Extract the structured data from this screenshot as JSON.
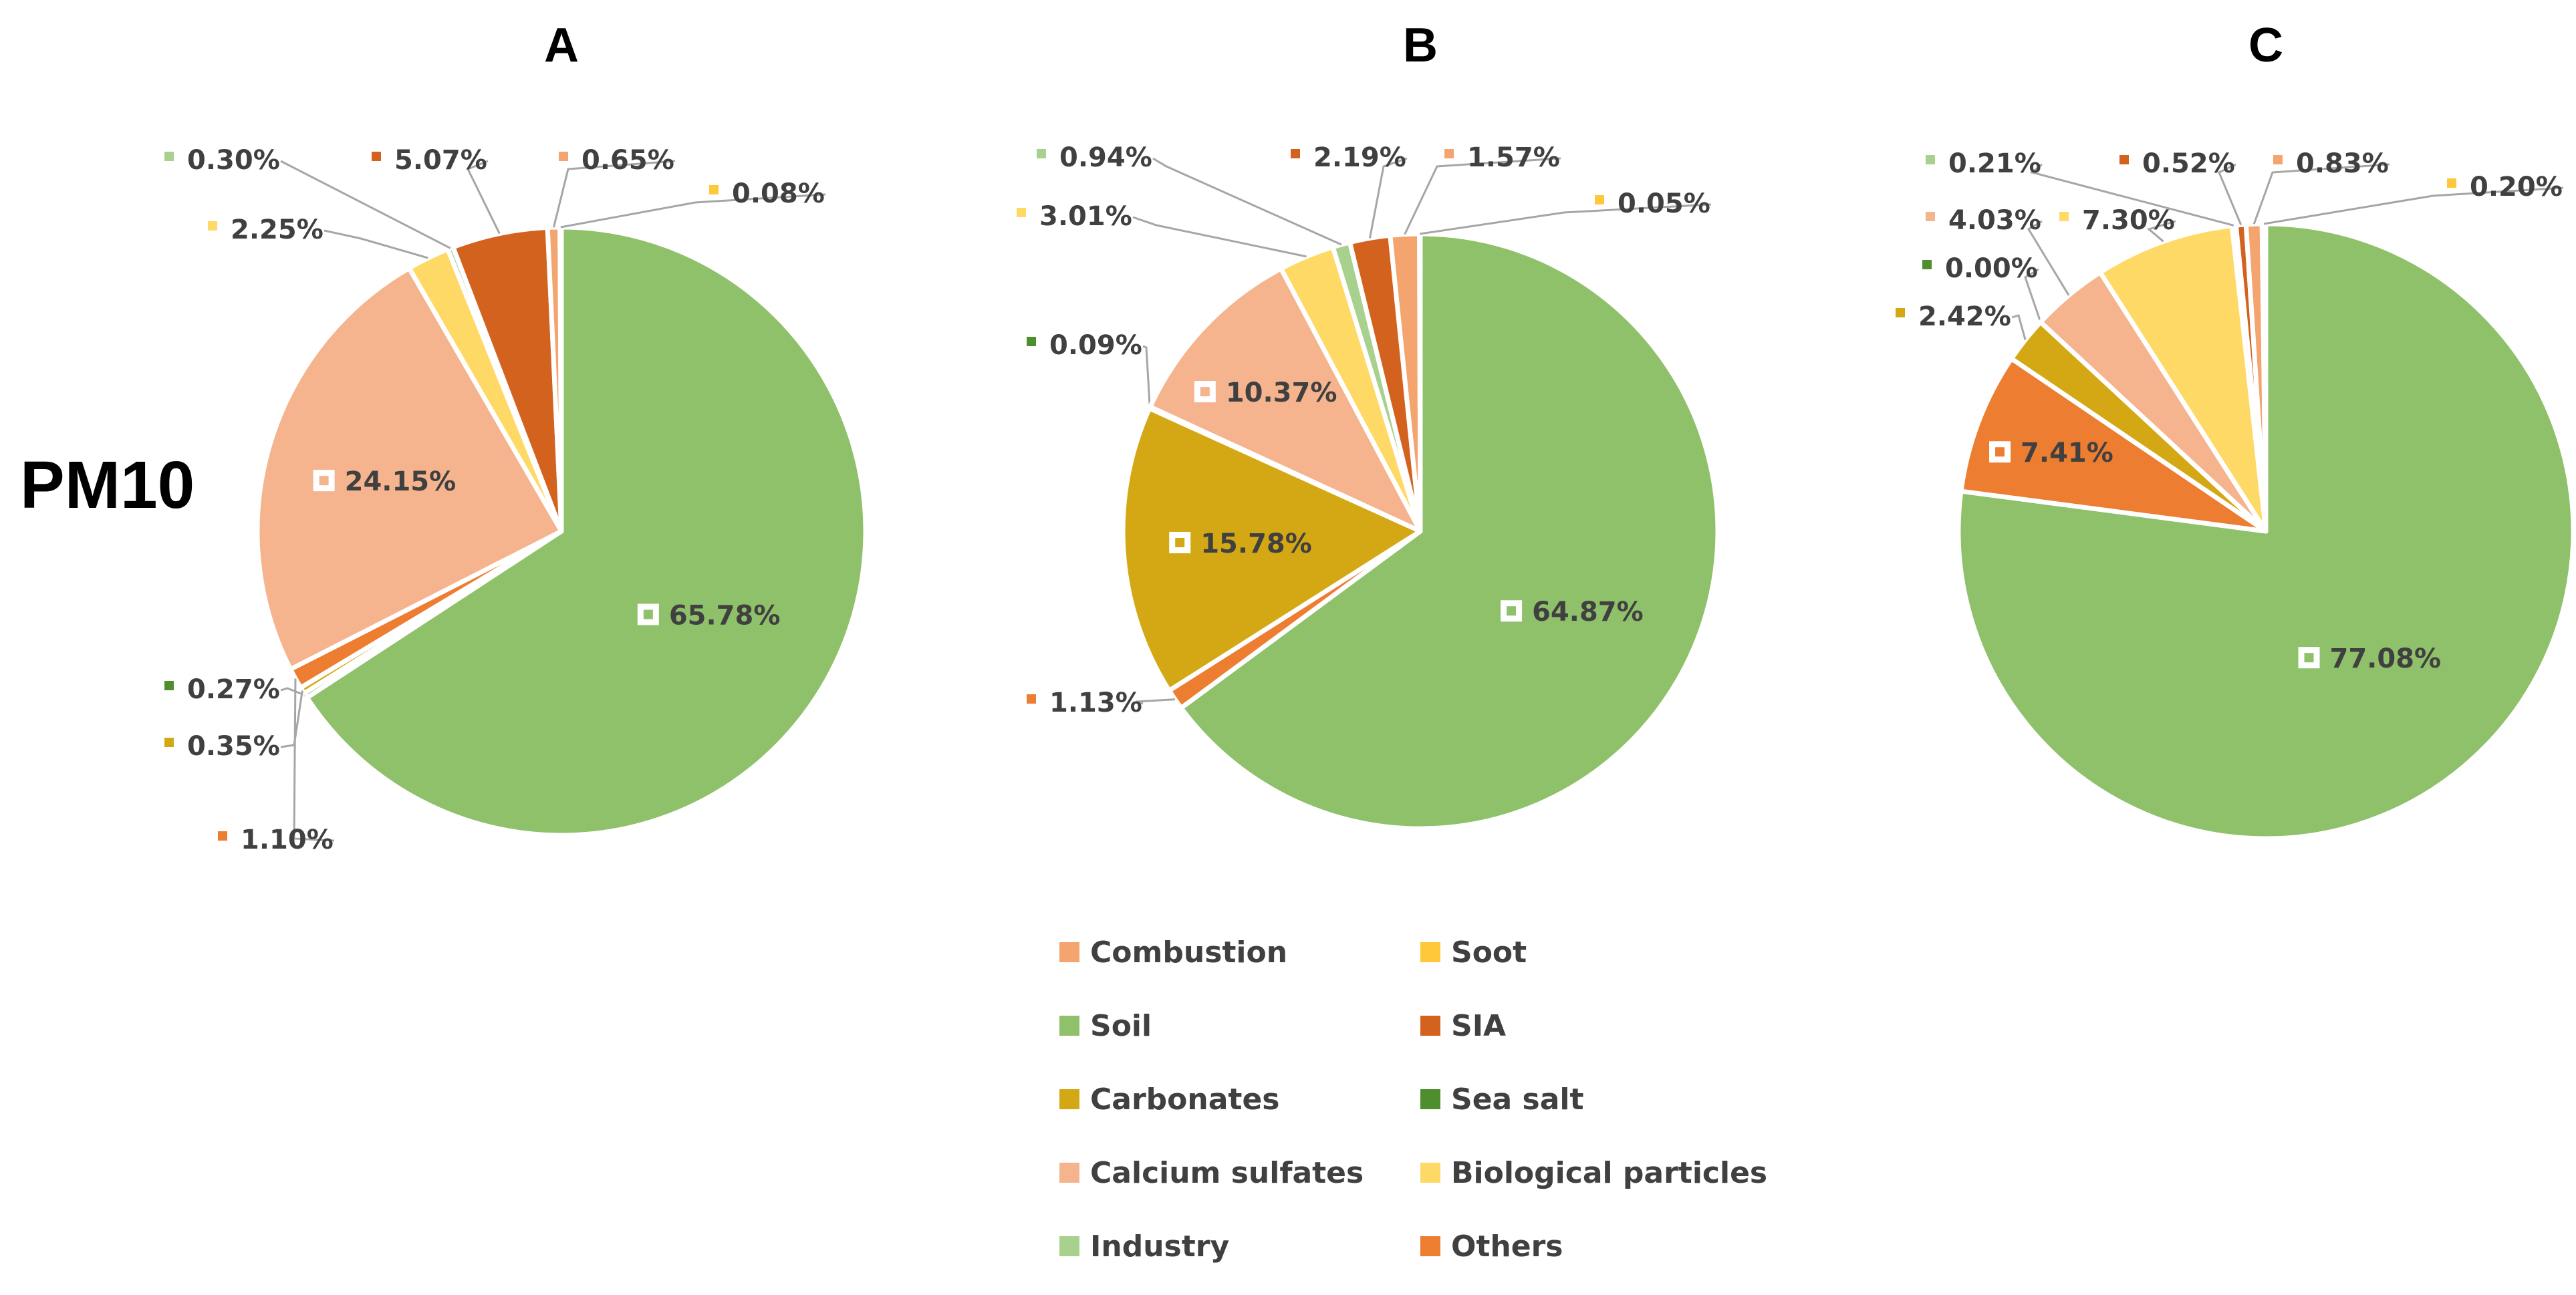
{
  "row_label": "PM10",
  "legend": [
    {
      "name": "Combustion",
      "color": "#F4A46E"
    },
    {
      "name": "Soot",
      "color": "#FFC83A"
    },
    {
      "name": "Soil",
      "color": "#8FC06A"
    },
    {
      "name": "SIA",
      "color": "#D3621F"
    },
    {
      "name": "Carbonates",
      "color": "#D4A814"
    },
    {
      "name": "Sea salt",
      "color": "#4E8E2E"
    },
    {
      "name": "Calcium sulfates",
      "color": "#F5B48E"
    },
    {
      "name": "Biological particles",
      "color": "#FFD966"
    },
    {
      "name": "Industry",
      "color": "#A9D18E"
    },
    {
      "name": "Others",
      "color": "#ED7D31"
    }
  ],
  "chart_data": [
    {
      "type": "pie",
      "title": "A",
      "slices": [
        {
          "name": "Soil",
          "value": 65.78,
          "label": "65.78%"
        },
        {
          "name": "Sea salt",
          "value": 0.27,
          "label": "0.27%"
        },
        {
          "name": "Carbonates",
          "value": 0.35,
          "label": "0.35%"
        },
        {
          "name": "Others",
          "value": 1.1,
          "label": "1.10%"
        },
        {
          "name": "Calcium sulfates",
          "value": 24.15,
          "label": "24.15%"
        },
        {
          "name": "Biological particles",
          "value": 2.25,
          "label": "2.25%"
        },
        {
          "name": "Industry",
          "value": 0.3,
          "label": "0.30%"
        },
        {
          "name": "SIA",
          "value": 5.07,
          "label": "5.07%"
        },
        {
          "name": "Combustion",
          "value": 0.65,
          "label": "0.65%"
        },
        {
          "name": "Soot",
          "value": 0.08,
          "label": "0.08%"
        }
      ]
    },
    {
      "type": "pie",
      "title": "B",
      "slices": [
        {
          "name": "Soil",
          "value": 64.87,
          "label": "64.87%"
        },
        {
          "name": "Others",
          "value": 1.13,
          "label": "1.13%"
        },
        {
          "name": "Carbonates",
          "value": 15.78,
          "label": "15.78%"
        },
        {
          "name": "Sea salt",
          "value": 0.09,
          "label": "0.09%"
        },
        {
          "name": "Calcium sulfates",
          "value": 10.37,
          "label": "10.37%"
        },
        {
          "name": "Biological particles",
          "value": 3.01,
          "label": "3.01%"
        },
        {
          "name": "Industry",
          "value": 0.94,
          "label": "0.94%"
        },
        {
          "name": "SIA",
          "value": 2.19,
          "label": "2.19%"
        },
        {
          "name": "Combustion",
          "value": 1.57,
          "label": "1.57%"
        },
        {
          "name": "Soot",
          "value": 0.05,
          "label": "0.05%"
        }
      ]
    },
    {
      "type": "pie",
      "title": "C",
      "slices": [
        {
          "name": "Soil",
          "value": 77.08,
          "label": "77.08%"
        },
        {
          "name": "Others",
          "value": 7.41,
          "label": "7.41%"
        },
        {
          "name": "Carbonates",
          "value": 2.42,
          "label": "2.42%"
        },
        {
          "name": "Sea salt",
          "value": 0.0,
          "label": "0.00%"
        },
        {
          "name": "Calcium sulfates",
          "value": 4.03,
          "label": "4.03%"
        },
        {
          "name": "Biological particles",
          "value": 7.3,
          "label": "7.30%"
        },
        {
          "name": "Industry",
          "value": 0.21,
          "label": "0.21%"
        },
        {
          "name": "SIA",
          "value": 0.52,
          "label": "0.52%"
        },
        {
          "name": "Combustion",
          "value": 0.83,
          "label": "0.83%"
        },
        {
          "name": "Soot",
          "value": 0.2,
          "label": "0.20%"
        }
      ]
    }
  ]
}
